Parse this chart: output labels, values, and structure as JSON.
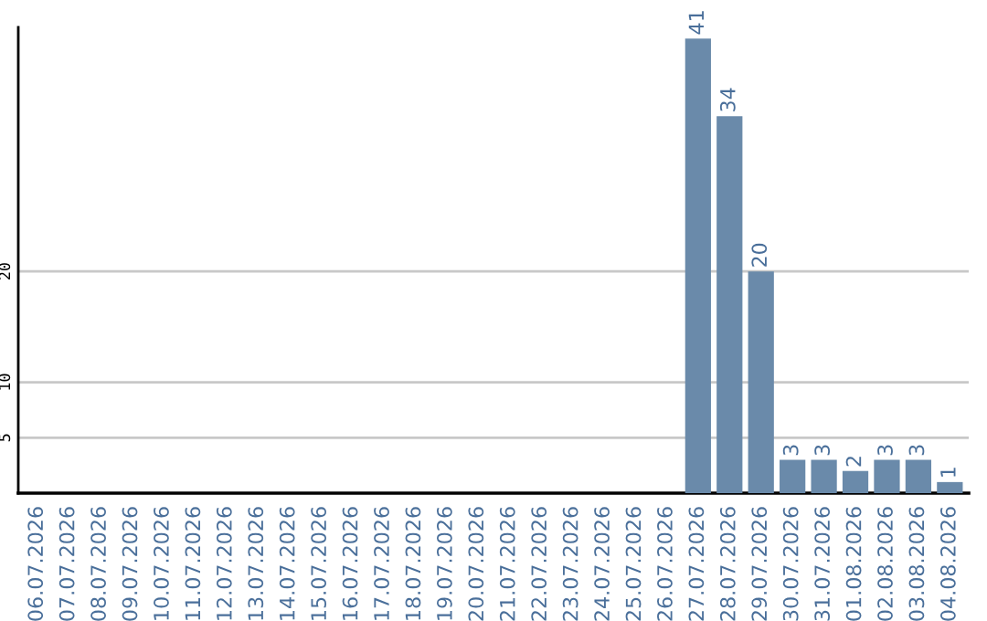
{
  "chart_data": {
    "type": "bar",
    "categories": [
      "06.07.2026",
      "07.07.2026",
      "08.07.2026",
      "09.07.2026",
      "10.07.2026",
      "11.07.2026",
      "12.07.2026",
      "13.07.2026",
      "14.07.2026",
      "15.07.2026",
      "16.07.2026",
      "17.07.2026",
      "18.07.2026",
      "19.07.2026",
      "20.07.2026",
      "21.07.2026",
      "22.07.2026",
      "23.07.2026",
      "24.07.2026",
      "25.07.2026",
      "26.07.2026",
      "27.07.2026",
      "28.07.2026",
      "29.07.2026",
      "30.07.2026",
      "31.07.2026",
      "01.08.2026",
      "02.08.2026",
      "03.08.2026",
      "04.08.2026"
    ],
    "values": [
      0,
      0,
      0,
      0,
      0,
      0,
      0,
      0,
      0,
      0,
      0,
      0,
      0,
      0,
      0,
      0,
      0,
      0,
      0,
      0,
      0,
      41,
      34,
      20,
      3,
      3,
      2,
      3,
      3,
      1
    ],
    "value_labels": [
      null,
      null,
      null,
      null,
      null,
      null,
      null,
      null,
      null,
      null,
      null,
      null,
      null,
      null,
      null,
      null,
      null,
      null,
      null,
      null,
      null,
      "41",
      "34",
      "20",
      "3",
      "3",
      "2",
      "3",
      "3",
      "1"
    ],
    "color": "#6a8aaa",
    "ylim": [
      0,
      42
    ],
    "yticks": [
      5,
      10,
      20
    ],
    "grid": "y"
  }
}
